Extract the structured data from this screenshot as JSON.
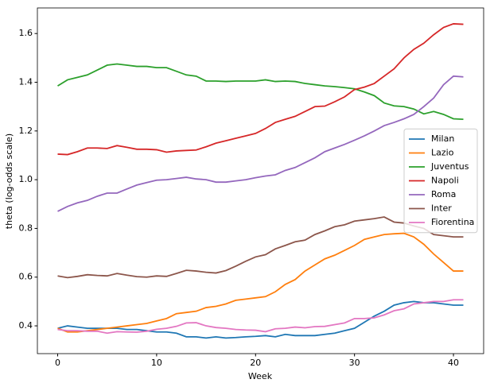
{
  "chart_data": {
    "type": "line",
    "x_label": "Week",
    "y_label": "theta (log-odds scale)",
    "x": [
      0,
      1,
      2,
      3,
      4,
      5,
      6,
      7,
      8,
      9,
      10,
      11,
      12,
      13,
      14,
      15,
      16,
      17,
      18,
      19,
      20,
      21,
      22,
      23,
      24,
      25,
      26,
      27,
      28,
      29,
      30,
      31,
      32,
      33,
      34,
      35,
      36,
      37,
      38,
      39,
      40,
      41
    ],
    "series": [
      {
        "name": "Milan",
        "color": "#1f77b4",
        "values": [
          0.39,
          0.4,
          0.395,
          0.39,
          0.39,
          0.39,
          0.39,
          0.385,
          0.385,
          0.38,
          0.375,
          0.375,
          0.37,
          0.355,
          0.355,
          0.35,
          0.355,
          0.35,
          0.352,
          0.355,
          0.357,
          0.36,
          0.355,
          0.365,
          0.36,
          0.36,
          0.36,
          0.365,
          0.37,
          0.38,
          0.39,
          0.415,
          0.44,
          0.46,
          0.485,
          0.495,
          0.5,
          0.495,
          0.495,
          0.49,
          0.485,
          0.485
        ]
      },
      {
        "name": "Lazio",
        "color": "#ff7f0e",
        "values": [
          0.39,
          0.375,
          0.375,
          0.38,
          0.385,
          0.39,
          0.395,
          0.4,
          0.405,
          0.41,
          0.42,
          0.43,
          0.45,
          0.455,
          0.46,
          0.475,
          0.48,
          0.49,
          0.505,
          0.51,
          0.515,
          0.52,
          0.54,
          0.57,
          0.59,
          0.625,
          0.65,
          0.675,
          0.69,
          0.71,
          0.73,
          0.755,
          0.765,
          0.775,
          0.778,
          0.78,
          0.765,
          0.735,
          0.695,
          0.66,
          0.625,
          0.625
        ]
      },
      {
        "name": "Juventus",
        "color": "#2ca02c",
        "values": [
          1.385,
          1.41,
          1.42,
          1.43,
          1.45,
          1.47,
          1.475,
          1.47,
          1.465,
          1.465,
          1.46,
          1.46,
          1.445,
          1.43,
          1.425,
          1.405,
          1.405,
          1.403,
          1.405,
          1.405,
          1.405,
          1.41,
          1.403,
          1.405,
          1.403,
          1.395,
          1.39,
          1.385,
          1.382,
          1.378,
          1.373,
          1.36,
          1.345,
          1.315,
          1.303,
          1.3,
          1.29,
          1.27,
          1.28,
          1.268,
          1.25,
          1.248
        ]
      },
      {
        "name": "Napoli",
        "color": "#d62728",
        "values": [
          1.105,
          1.103,
          1.115,
          1.13,
          1.13,
          1.128,
          1.14,
          1.133,
          1.125,
          1.125,
          1.123,
          1.113,
          1.118,
          1.12,
          1.122,
          1.135,
          1.15,
          1.16,
          1.17,
          1.18,
          1.19,
          1.21,
          1.235,
          1.248,
          1.26,
          1.28,
          1.3,
          1.302,
          1.32,
          1.34,
          1.37,
          1.38,
          1.395,
          1.425,
          1.455,
          1.5,
          1.535,
          1.56,
          1.595,
          1.625,
          1.64,
          1.638
        ]
      },
      {
        "name": "Roma",
        "color": "#9467bd",
        "values": [
          0.87,
          0.89,
          0.905,
          0.915,
          0.932,
          0.945,
          0.945,
          0.962,
          0.978,
          0.988,
          0.998,
          1.0,
          1.005,
          1.01,
          1.003,
          1.0,
          0.99,
          0.99,
          0.995,
          1.0,
          1.008,
          1.015,
          1.02,
          1.038,
          1.05,
          1.07,
          1.09,
          1.115,
          1.13,
          1.145,
          1.162,
          1.18,
          1.2,
          1.222,
          1.235,
          1.25,
          1.268,
          1.3,
          1.335,
          1.39,
          1.425,
          1.422
        ]
      },
      {
        "name": "Inter",
        "color": "#8c564b",
        "values": [
          0.605,
          0.598,
          0.603,
          0.61,
          0.607,
          0.605,
          0.615,
          0.608,
          0.602,
          0.6,
          0.605,
          0.603,
          0.615,
          0.628,
          0.625,
          0.62,
          0.617,
          0.627,
          0.645,
          0.665,
          0.683,
          0.692,
          0.716,
          0.73,
          0.745,
          0.752,
          0.775,
          0.79,
          0.807,
          0.815,
          0.83,
          0.835,
          0.84,
          0.847,
          0.826,
          0.822,
          0.81,
          0.8,
          0.775,
          0.77,
          0.765,
          0.765
        ]
      },
      {
        "name": "Fiorentina",
        "color": "#e377c2",
        "values": [
          0.385,
          0.38,
          0.38,
          0.378,
          0.378,
          0.37,
          0.376,
          0.375,
          0.374,
          0.378,
          0.386,
          0.39,
          0.398,
          0.412,
          0.413,
          0.4,
          0.393,
          0.39,
          0.385,
          0.383,
          0.382,
          0.376,
          0.388,
          0.39,
          0.395,
          0.392,
          0.397,
          0.398,
          0.405,
          0.412,
          0.43,
          0.43,
          0.433,
          0.445,
          0.462,
          0.47,
          0.49,
          0.495,
          0.5,
          0.5,
          0.507,
          0.507
        ]
      }
    ],
    "xlim": [
      -2.05,
      43.05
    ],
    "xticks": [
      0,
      10,
      20,
      30,
      40
    ],
    "ylim": [
      0.286,
      1.705
    ],
    "yticks": [
      0.4,
      0.6,
      0.8,
      {
        "value": 1,
        "label": "1.0"
      },
      1.2,
      1.4,
      1.6
    ],
    "legend": "center right",
    "grid": false
  }
}
